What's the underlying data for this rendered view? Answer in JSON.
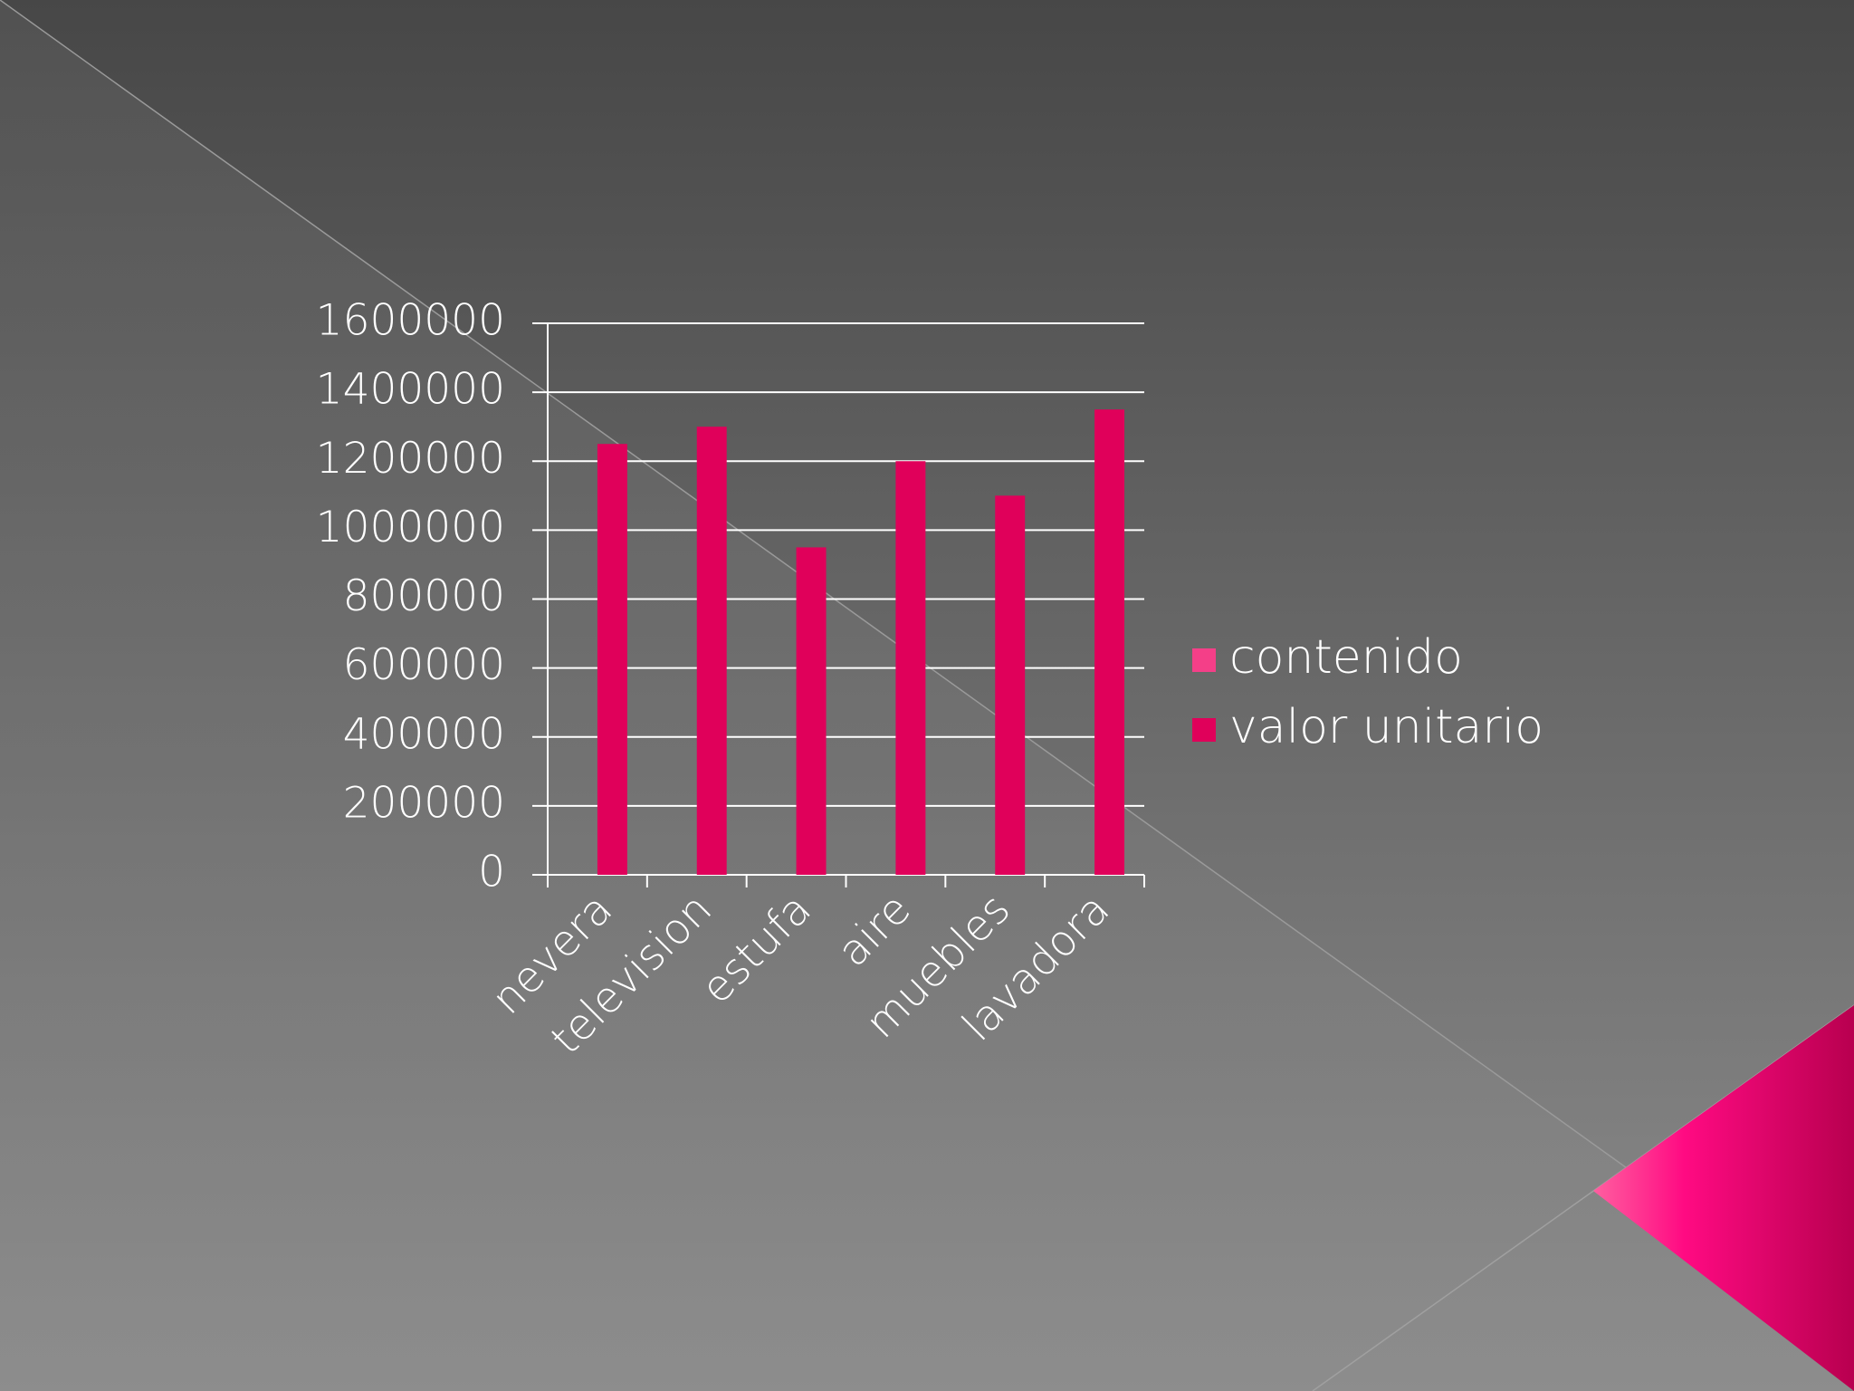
{
  "chart_data": {
    "type": "bar",
    "categories": [
      "nevera",
      "television",
      "estufa",
      "aire",
      "muebles",
      "lavadora"
    ],
    "series": [
      {
        "name": "contenido",
        "color": "#f43f88",
        "values": [
          0,
          0,
          0,
          0,
          0,
          0
        ]
      },
      {
        "name": "valor unitario",
        "color": "#e0005a",
        "values": [
          1250000,
          1300000,
          950000,
          1200000,
          1100000,
          1350000
        ]
      }
    ],
    "ylim": [
      0,
      1600000
    ],
    "yticks": [
      0,
      200000,
      400000,
      600000,
      800000,
      1000000,
      1200000,
      1400000,
      1600000
    ],
    "grid": true,
    "legend": "right"
  }
}
